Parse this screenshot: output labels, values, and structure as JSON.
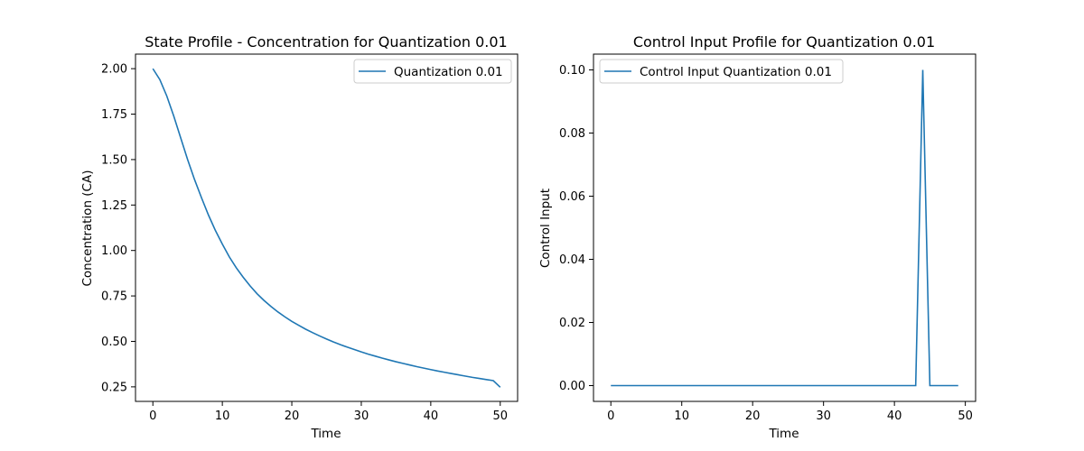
{
  "chart_data": [
    {
      "type": "line",
      "title": "State Profile - Concentration for Quantization 0.01",
      "xlabel": "Time",
      "ylabel": "Concentration (CA)",
      "xlim": [
        -2.5,
        52.5
      ],
      "ylim": [
        0.17,
        2.08
      ],
      "xticks": [
        0,
        10,
        20,
        30,
        40,
        50
      ],
      "yticks": [
        0.25,
        0.5,
        0.75,
        1.0,
        1.25,
        1.5,
        1.75,
        2.0
      ],
      "xtick_labels": [
        "0",
        "10",
        "20",
        "30",
        "40",
        "50"
      ],
      "ytick_labels": [
        "0.25",
        "0.50",
        "0.75",
        "1.00",
        "1.25",
        "1.50",
        "1.75",
        "2.00"
      ],
      "grid": false,
      "legend": "upper right",
      "color": "#1f77b4",
      "series": [
        {
          "name": "Quantization 0.01",
          "x": [
            0,
            1,
            2,
            3,
            4,
            5,
            6,
            7,
            8,
            9,
            10,
            11,
            12,
            13,
            14,
            15,
            16,
            17,
            18,
            19,
            20,
            21,
            22,
            23,
            24,
            25,
            26,
            27,
            28,
            29,
            30,
            31,
            32,
            33,
            34,
            35,
            36,
            37,
            38,
            39,
            40,
            41,
            42,
            43,
            44,
            45,
            46,
            47,
            48,
            49,
            50
          ],
          "values": [
            2.0,
            1.94,
            1.85,
            1.74,
            1.62,
            1.5,
            1.39,
            1.29,
            1.195,
            1.11,
            1.035,
            0.965,
            0.905,
            0.853,
            0.805,
            0.762,
            0.725,
            0.692,
            0.662,
            0.635,
            0.61,
            0.588,
            0.567,
            0.548,
            0.53,
            0.513,
            0.497,
            0.482,
            0.468,
            0.455,
            0.442,
            0.43,
            0.419,
            0.408,
            0.398,
            0.388,
            0.379,
            0.37,
            0.361,
            0.353,
            0.345,
            0.337,
            0.33,
            0.323,
            0.316,
            0.309,
            0.302,
            0.296,
            0.29,
            0.284,
            0.248
          ]
        }
      ]
    },
    {
      "type": "line",
      "title": "Control Input Profile for Quantization 0.01",
      "xlabel": "Time",
      "ylabel": "Control Input",
      "xlim": [
        -2.45,
        51.45
      ],
      "ylim": [
        -0.005,
        0.105
      ],
      "xticks": [
        0,
        10,
        20,
        30,
        40,
        50
      ],
      "yticks": [
        0.0,
        0.02,
        0.04,
        0.06,
        0.08,
        0.1
      ],
      "xtick_labels": [
        "0",
        "10",
        "20",
        "30",
        "40",
        "50"
      ],
      "ytick_labels": [
        "0.00",
        "0.02",
        "0.04",
        "0.06",
        "0.08",
        "0.10"
      ],
      "grid": false,
      "legend": "upper left",
      "color": "#1f77b4",
      "series": [
        {
          "name": "Control Input Quantization 0.01",
          "x": [
            0,
            1,
            2,
            3,
            4,
            5,
            6,
            7,
            8,
            9,
            10,
            11,
            12,
            13,
            14,
            15,
            16,
            17,
            18,
            19,
            20,
            21,
            22,
            23,
            24,
            25,
            26,
            27,
            28,
            29,
            30,
            31,
            32,
            33,
            34,
            35,
            36,
            37,
            38,
            39,
            40,
            41,
            42,
            43,
            44,
            45,
            46,
            47,
            48,
            49
          ],
          "values": [
            0,
            0,
            0,
            0,
            0,
            0,
            0,
            0,
            0,
            0,
            0,
            0,
            0,
            0,
            0,
            0,
            0,
            0,
            0,
            0,
            0,
            0,
            0,
            0,
            0,
            0,
            0,
            0,
            0,
            0,
            0,
            0,
            0,
            0,
            0,
            0,
            0,
            0,
            0,
            0,
            0,
            0,
            0,
            0,
            0.1,
            0,
            0,
            0,
            0,
            0
          ]
        }
      ]
    }
  ]
}
